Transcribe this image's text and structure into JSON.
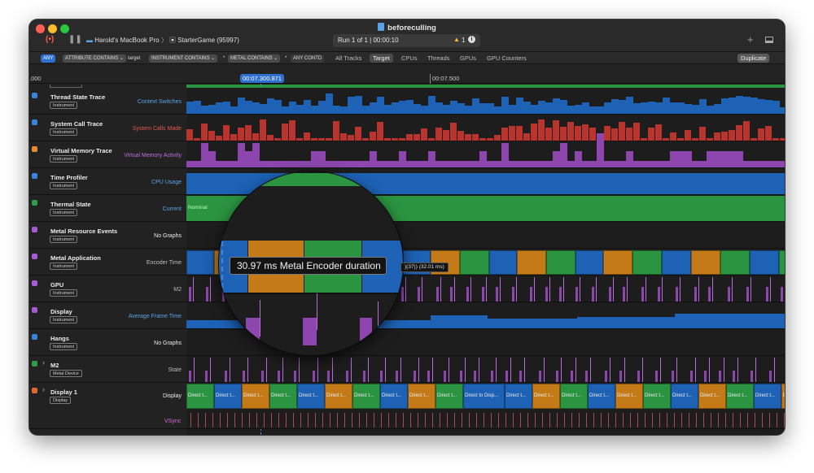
{
  "window": {
    "title": "beforeculling"
  },
  "toolbar": {
    "device": "Harold's MacBook Pro",
    "target": "StarterGame (95997)",
    "run": "Run 1 of 1  |  00:00:10",
    "warning_count": "1",
    "record_icon": "record-icon",
    "pause_icon": "pause-icon",
    "add_icon": "plus-icon",
    "layout_icon": "layout-icon"
  },
  "filters": {
    "any_badge": "ANY",
    "pills": [
      "ATTRIBUTE CONTAINS",
      "target",
      "INSTRUMENT CONTAINS",
      "METAL CONTAINS",
      "ANY CONTD"
    ],
    "tabs": [
      "All Tracks",
      "Target",
      "CPUs",
      "Threads",
      "GPUs",
      "GPU Counters"
    ],
    "active_tab": "Target",
    "duplicate": "Duplicate"
  },
  "ruler": {
    "left_label": ".000",
    "cursor_label": "00:07.300.871",
    "right_label": "00:07.500"
  },
  "tracks": [
    {
      "name": "Thread State Trace",
      "tag": "Instrument",
      "label": "Context Switches",
      "label_color": "#5aa6e8"
    },
    {
      "name": "System Call Trace",
      "tag": "Instrument",
      "label": "System Calls Made",
      "label_color": "#e05a4e"
    },
    {
      "name": "Virtual Memory Trace",
      "tag": "Instrument",
      "label": "Virtual Memory Activity",
      "label_color": "#c16ee0"
    },
    {
      "name": "Time Profiler",
      "tag": "Instrument",
      "label": "CPU Usage",
      "label_color": "#5aa6e8"
    },
    {
      "name": "Thermal State",
      "tag": "Instrument",
      "label": "Current",
      "label_color": "#5aa6e8"
    },
    {
      "name": "Metal Resource Events",
      "tag": "Instrument",
      "label": "No Graphs",
      "label_color": "#ececec"
    },
    {
      "name": "Metal Application",
      "tag": "Instrument",
      "label": "Encoder Time",
      "label_color": "#bdbdbd"
    },
    {
      "name": "GPU",
      "tag": "Instrument",
      "label": "M2",
      "label_color": "#bdbdbd"
    },
    {
      "name": "Display",
      "tag": "Instrument",
      "label": "Average Frame Time",
      "label_color": "#5aa6e8"
    },
    {
      "name": "Hangs",
      "tag": "Instrument",
      "label": "No Graphs",
      "label_color": "#ececec"
    },
    {
      "name": "M2",
      "tag": "Metal Device",
      "label": "State",
      "label_color": "#bdbdbd"
    },
    {
      "name": "Display 1",
      "tag": "Display",
      "label": "Display",
      "label_color": "#ececec"
    }
  ],
  "vsync_label": "VSync",
  "thermal_value": "Nominal",
  "display_block_label": "Direct t...",
  "display_block_label_full": "Direct to Disp...",
  "callout": "30.97 ms Metal Encoder duration",
  "callout_secondary": ")(37)) (32.01 ms)",
  "colors": {
    "blue": "#1d62b5",
    "red": "#b8342c",
    "purple": "#8c46ad",
    "green": "#2b9441",
    "orange": "#c57a18"
  }
}
